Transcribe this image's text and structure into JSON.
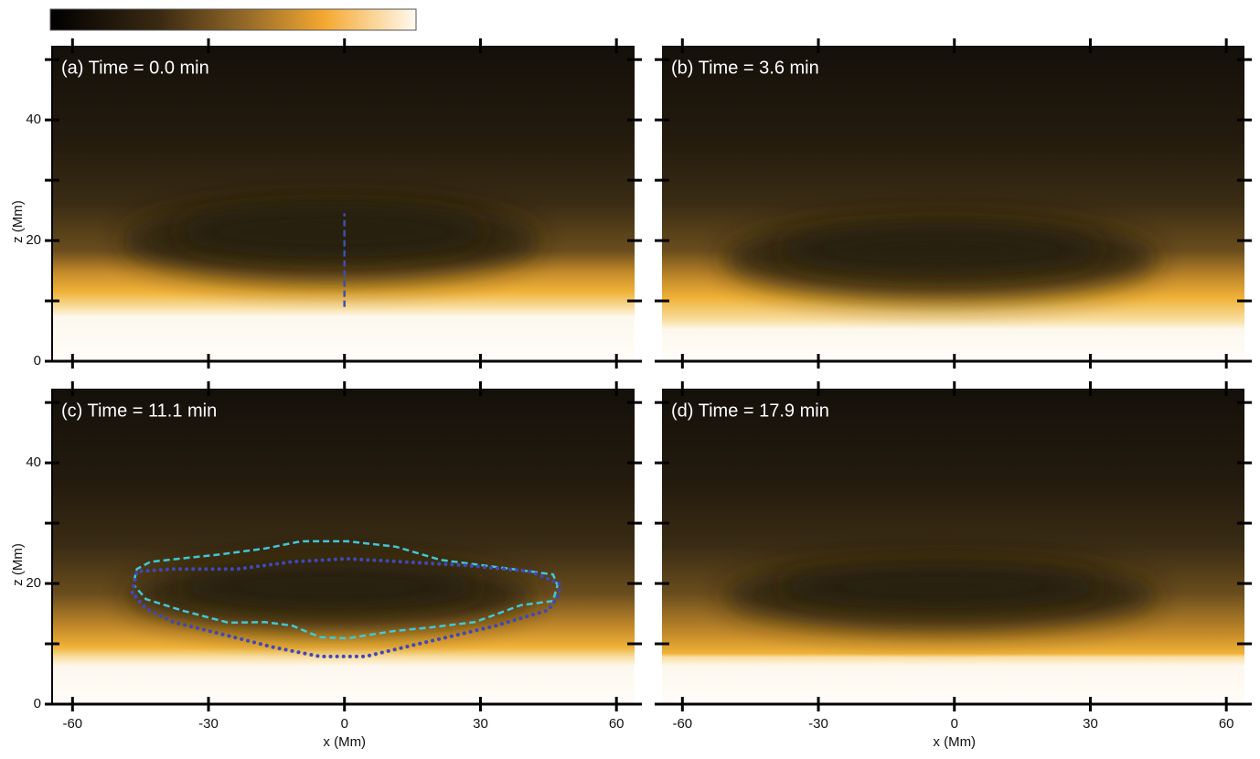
{
  "chart_data": [
    {
      "type": "heatmap",
      "title": "(a) Time = 0.0 min",
      "xlim": [
        -64.5,
        64
      ],
      "ylim": [
        0,
        52.3
      ],
      "xticks": [
        -60,
        -30,
        0,
        30,
        60
      ],
      "yticks": [
        0,
        20,
        40
      ],
      "yminor": [
        10,
        30,
        50
      ],
      "ylabel": "z (Mm)",
      "contours": [
        {
          "color": "#3c4fb0",
          "dash": "dashed",
          "x": [
            0,
            0
          ],
          "z": [
            9,
            24.5
          ]
        }
      ]
    },
    {
      "type": "heatmap",
      "title": "(b) Time = 3.6 min",
      "xlim": [
        -64.5,
        64
      ],
      "ylim": [
        0,
        52.3
      ],
      "xticks": [
        -60,
        -30,
        0,
        30,
        60
      ],
      "yticks": [
        0,
        20,
        40
      ],
      "yminor": [
        10,
        30,
        50
      ]
    },
    {
      "type": "heatmap",
      "title": "(c) Time = 11.1 min",
      "xlim": [
        -64.5,
        64
      ],
      "ylim": [
        0,
        52.3
      ],
      "xticks": [
        -60,
        -30,
        0,
        30,
        60
      ],
      "yticks": [
        0,
        20,
        40
      ],
      "yminor": [
        10,
        30,
        50
      ],
      "xlabel": "x (Mm)",
      "ylabel": "z (Mm)",
      "contours": [
        {
          "color": "#40c8d8",
          "dash": "dashed",
          "x": [
            -46.4,
            -45.8,
            -42.8,
            -27.6,
            -17.5,
            -9.5,
            0.6,
            11.3,
            21.2,
            36.9,
            46,
            47,
            46,
            38.9,
            28.8,
            18.8,
            10.7,
            0.6,
            -5.4,
            -11.5,
            -17.5,
            -25.6,
            -35.7,
            -43.8,
            -46.4
          ],
          "z": [
            20.5,
            22.4,
            23.6,
            24.8,
            25.8,
            27,
            27,
            26.1,
            23.9,
            22.4,
            21.5,
            19.7,
            17.1,
            16.4,
            13.6,
            12.7,
            12.1,
            10.9,
            11.1,
            13,
            13.6,
            13.5,
            15.5,
            17.4,
            19.7
          ]
        },
        {
          "color": "#4048b8",
          "dash": "dotted",
          "x": [
            -46.8,
            -45.8,
            -37.7,
            -23.6,
            -11.5,
            0.6,
            12.7,
            26.8,
            40.9,
            47.4,
            47.4,
            45,
            32.9,
            14.7,
            4.6,
            -5.4,
            -15.5,
            -27.6,
            -37.7,
            -43.8,
            -46.8
          ],
          "z": [
            18.5,
            22,
            22.4,
            22.4,
            23.6,
            24.1,
            23.6,
            23,
            22,
            20,
            18.2,
            15.6,
            12.9,
            9.7,
            7.9,
            7.9,
            9.4,
            11.7,
            13.6,
            15.8,
            18.5
          ]
        }
      ]
    },
    {
      "type": "heatmap",
      "title": "(d) Time = 17.9 min",
      "xlim": [
        -64.5,
        64
      ],
      "ylim": [
        0,
        52.3
      ],
      "xticks": [
        -60,
        -30,
        0,
        30,
        60
      ],
      "yticks": [
        0,
        20,
        40
      ],
      "yminor": [
        10,
        30,
        50
      ],
      "xlabel": "x (Mm)"
    }
  ]
}
